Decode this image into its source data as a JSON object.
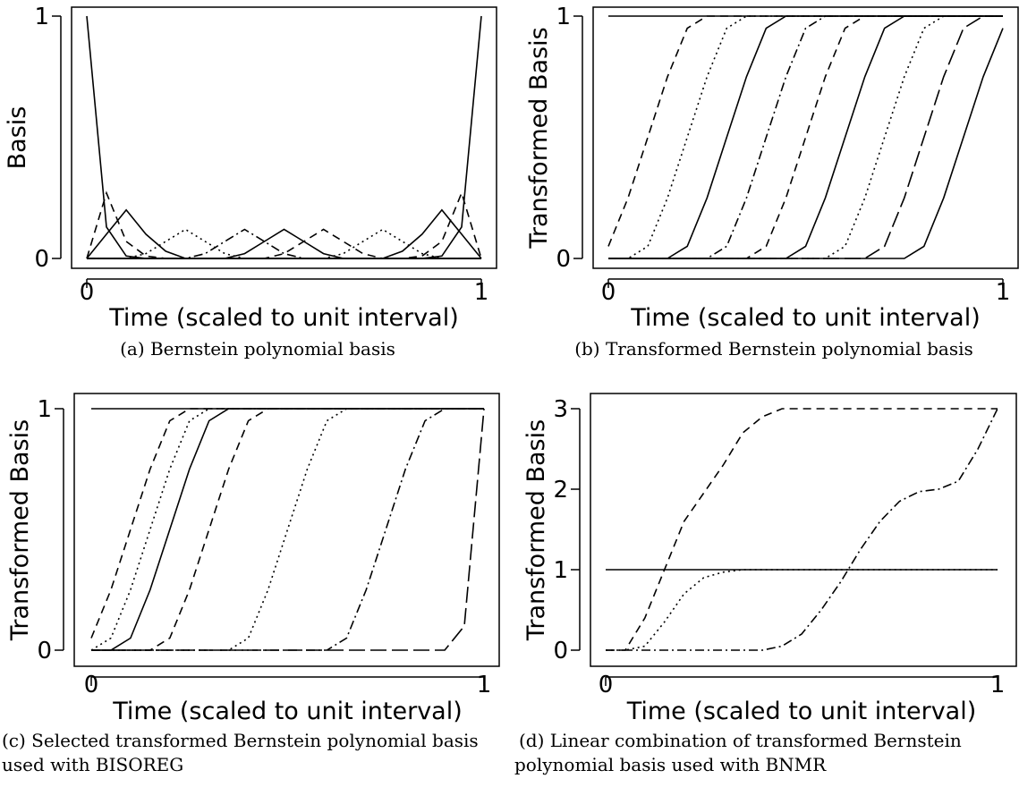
{
  "chart_data": [
    {
      "type": "line",
      "caption": [
        "(a) Bernstein polynomial basis"
      ],
      "xlabel": "Time (scaled to unit interval)",
      "ylabel": "Basis",
      "xlim": [
        0,
        1
      ],
      "ylim": [
        0,
        1
      ],
      "xticks": [
        0,
        1
      ],
      "yticks": [
        0,
        1
      ],
      "color": "#000000",
      "x": [
        0,
        0.05,
        0.1,
        0.15,
        0.2,
        0.25,
        0.3,
        0.35,
        0.4,
        0.45,
        0.5,
        0.55,
        0.6,
        0.65,
        0.7,
        0.75,
        0.8,
        0.85,
        0.9,
        0.95,
        1
      ],
      "series": [
        {
          "linestyle": "solid",
          "values": [
            1,
            0.13,
            0.01,
            0,
            0,
            0,
            0,
            0,
            0,
            0,
            0,
            0,
            0,
            0,
            0,
            0,
            0,
            0,
            0,
            0,
            0
          ]
        },
        {
          "linestyle": "solid",
          "values": [
            0,
            0,
            0,
            0,
            0,
            0,
            0,
            0,
            0,
            0,
            0,
            0,
            0,
            0,
            0,
            0,
            0,
            0,
            0.01,
            0.13,
            1
          ]
        },
        {
          "linestyle": "dashed",
          "values": [
            0,
            0.27,
            0.07,
            0.01,
            0,
            0,
            0,
            0,
            0,
            0,
            0,
            0,
            0,
            0,
            0,
            0,
            0,
            0,
            0,
            0,
            0
          ]
        },
        {
          "linestyle": "dashed",
          "values": [
            0,
            0,
            0,
            0,
            0,
            0,
            0,
            0,
            0,
            0,
            0,
            0,
            0,
            0,
            0,
            0,
            0,
            0.01,
            0.07,
            0.27,
            0
          ]
        },
        {
          "linestyle": "solid",
          "values": [
            0,
            0.1,
            0.2,
            0.1,
            0.03,
            0,
            0,
            0,
            0,
            0,
            0,
            0,
            0,
            0,
            0,
            0,
            0,
            0,
            0,
            0,
            0
          ]
        },
        {
          "linestyle": "solid",
          "values": [
            0,
            0,
            0,
            0,
            0,
            0,
            0,
            0,
            0,
            0,
            0,
            0,
            0,
            0,
            0,
            0,
            0.03,
            0.1,
            0.2,
            0.1,
            0
          ]
        },
        {
          "linestyle": "dotted",
          "values": [
            0,
            0,
            0,
            0.02,
            0.07,
            0.12,
            0.07,
            0.02,
            0,
            0,
            0,
            0,
            0,
            0,
            0,
            0,
            0,
            0,
            0,
            0,
            0
          ]
        },
        {
          "linestyle": "dashdot",
          "values": [
            0,
            0,
            0,
            0,
            0,
            0,
            0.02,
            0.07,
            0.12,
            0.07,
            0.02,
            0,
            0,
            0,
            0,
            0,
            0,
            0,
            0,
            0,
            0
          ]
        },
        {
          "linestyle": "solid",
          "values": [
            0,
            0,
            0,
            0,
            0,
            0,
            0,
            0,
            0.02,
            0.07,
            0.12,
            0.07,
            0.02,
            0,
            0,
            0,
            0,
            0,
            0,
            0,
            0
          ]
        },
        {
          "linestyle": "dashed",
          "values": [
            0,
            0,
            0,
            0,
            0,
            0,
            0,
            0,
            0,
            0,
            0.02,
            0.07,
            0.12,
            0.07,
            0.02,
            0,
            0,
            0,
            0,
            0,
            0
          ]
        },
        {
          "linestyle": "dotted",
          "values": [
            0,
            0,
            0,
            0,
            0,
            0,
            0,
            0,
            0,
            0,
            0,
            0,
            0,
            0.02,
            0.07,
            0.12,
            0.07,
            0.02,
            0,
            0,
            0
          ]
        }
      ]
    },
    {
      "type": "line",
      "caption": [
        "(b) Transformed Bernstein polynomial basis"
      ],
      "xlabel": "Time (scaled to unit interval)",
      "ylabel": "Transformed Basis",
      "xlim": [
        0,
        1
      ],
      "ylim": [
        0,
        1
      ],
      "xticks": [
        0,
        1
      ],
      "yticks": [
        0,
        1
      ],
      "color": "#000000",
      "x": [
        0,
        0.05,
        0.1,
        0.15,
        0.2,
        0.25,
        0.3,
        0.35,
        0.4,
        0.45,
        0.5,
        0.55,
        0.6,
        0.65,
        0.7,
        0.75,
        0.8,
        0.85,
        0.9,
        0.95,
        1
      ],
      "series": [
        {
          "linestyle": "solid",
          "values": [
            1,
            1,
            1,
            1,
            1,
            1,
            1,
            1,
            1,
            1,
            1,
            1,
            1,
            1,
            1,
            1,
            1,
            1,
            1,
            1,
            1
          ]
        },
        {
          "linestyle": "dashed",
          "values": [
            0.05,
            0.25,
            0.5,
            0.75,
            0.95,
            1,
            1,
            1,
            1,
            1,
            1,
            1,
            1,
            1,
            1,
            1,
            1,
            1,
            1,
            1,
            1
          ]
        },
        {
          "linestyle": "dotted",
          "values": [
            0,
            0,
            0.05,
            0.25,
            0.5,
            0.75,
            0.95,
            1,
            1,
            1,
            1,
            1,
            1,
            1,
            1,
            1,
            1,
            1,
            1,
            1,
            1
          ]
        },
        {
          "linestyle": "solid",
          "values": [
            0,
            0,
            0,
            0,
            0.05,
            0.25,
            0.5,
            0.75,
            0.95,
            1,
            1,
            1,
            1,
            1,
            1,
            1,
            1,
            1,
            1,
            1,
            1
          ]
        },
        {
          "linestyle": "dashdot",
          "values": [
            0,
            0,
            0,
            0,
            0,
            0,
            0.05,
            0.25,
            0.5,
            0.75,
            0.95,
            1,
            1,
            1,
            1,
            1,
            1,
            1,
            1,
            1,
            1
          ]
        },
        {
          "linestyle": "dashed",
          "values": [
            0,
            0,
            0,
            0,
            0,
            0,
            0,
            0,
            0.05,
            0.25,
            0.5,
            0.75,
            0.95,
            1,
            1,
            1,
            1,
            1,
            1,
            1,
            1
          ]
        },
        {
          "linestyle": "solid",
          "values": [
            0,
            0,
            0,
            0,
            0,
            0,
            0,
            0,
            0,
            0,
            0.05,
            0.25,
            0.5,
            0.75,
            0.95,
            1,
            1,
            1,
            1,
            1,
            1
          ]
        },
        {
          "linestyle": "dotted",
          "values": [
            0,
            0,
            0,
            0,
            0,
            0,
            0,
            0,
            0,
            0,
            0,
            0,
            0.05,
            0.25,
            0.5,
            0.75,
            0.95,
            1,
            1,
            1,
            1
          ]
        },
        {
          "linestyle": "longdash",
          "values": [
            0,
            0,
            0,
            0,
            0,
            0,
            0,
            0,
            0,
            0,
            0,
            0,
            0,
            0,
            0.05,
            0.25,
            0.5,
            0.75,
            0.95,
            1,
            1
          ]
        },
        {
          "linestyle": "solid",
          "values": [
            0,
            0,
            0,
            0,
            0,
            0,
            0,
            0,
            0,
            0,
            0,
            0,
            0,
            0,
            0,
            0,
            0.05,
            0.25,
            0.5,
            0.75,
            0.95
          ]
        }
      ]
    },
    {
      "type": "line",
      "caption": [
        "(c) Selected transformed Bernstein polynomial basis",
        "used with BISOREG"
      ],
      "xlabel": "Time (scaled to unit interval)",
      "ylabel": "Transformed Basis",
      "xlim": [
        0,
        1
      ],
      "ylim": [
        0,
        1
      ],
      "xticks": [
        0,
        1
      ],
      "yticks": [
        0,
        1
      ],
      "color": "#000000",
      "x": [
        0,
        0.05,
        0.1,
        0.15,
        0.2,
        0.25,
        0.3,
        0.35,
        0.4,
        0.45,
        0.5,
        0.55,
        0.6,
        0.65,
        0.7,
        0.75,
        0.8,
        0.85,
        0.9,
        0.95,
        1
      ],
      "series": [
        {
          "linestyle": "solid",
          "values": [
            1,
            1,
            1,
            1,
            1,
            1,
            1,
            1,
            1,
            1,
            1,
            1,
            1,
            1,
            1,
            1,
            1,
            1,
            1,
            1,
            1
          ]
        },
        {
          "linestyle": "dashed",
          "values": [
            0.05,
            0.25,
            0.5,
            0.75,
            0.95,
            1,
            1,
            1,
            1,
            1,
            1,
            1,
            1,
            1,
            1,
            1,
            1,
            1,
            1,
            1,
            1
          ]
        },
        {
          "linestyle": "dotted",
          "values": [
            0,
            0.05,
            0.25,
            0.5,
            0.75,
            0.95,
            1,
            1,
            1,
            1,
            1,
            1,
            1,
            1,
            1,
            1,
            1,
            1,
            1,
            1,
            1
          ]
        },
        {
          "linestyle": "solid",
          "values": [
            0,
            0,
            0.05,
            0.25,
            0.5,
            0.75,
            0.95,
            1,
            1,
            1,
            1,
            1,
            1,
            1,
            1,
            1,
            1,
            1,
            1,
            1,
            1
          ]
        },
        {
          "linestyle": "dashed",
          "values": [
            0,
            0,
            0,
            0,
            0.05,
            0.25,
            0.5,
            0.75,
            0.95,
            1,
            1,
            1,
            1,
            1,
            1,
            1,
            1,
            1,
            1,
            1,
            1
          ]
        },
        {
          "linestyle": "dotted",
          "values": [
            0,
            0,
            0,
            0,
            0,
            0,
            0,
            0,
            0.05,
            0.25,
            0.5,
            0.75,
            0.95,
            1,
            1,
            1,
            1,
            1,
            1,
            1,
            1
          ]
        },
        {
          "linestyle": "dashdot",
          "values": [
            0,
            0,
            0,
            0,
            0,
            0,
            0,
            0,
            0,
            0,
            0,
            0,
            0,
            0.05,
            0.25,
            0.5,
            0.75,
            0.95,
            1,
            1,
            1
          ]
        },
        {
          "linestyle": "longdash",
          "values": [
            0,
            0,
            0,
            0,
            0,
            0,
            0,
            0,
            0,
            0,
            0,
            0,
            0,
            0,
            0,
            0,
            0,
            0,
            0,
            0.1,
            1
          ]
        }
      ]
    },
    {
      "type": "line",
      "caption": [
        "(d)  Linear  combination  of  transformed  Bernstein",
        "polynomial basis used with BNMR"
      ],
      "xlabel": "Time (scaled to unit interval)",
      "ylabel": "Transformed Basis",
      "xlim": [
        0,
        1
      ],
      "ylim": [
        0,
        3
      ],
      "xticks": [
        0,
        1
      ],
      "yticks": [
        0,
        1,
        2,
        3
      ],
      "color": "#000000",
      "x": [
        0,
        0.05,
        0.1,
        0.15,
        0.2,
        0.25,
        0.3,
        0.35,
        0.4,
        0.45,
        0.5,
        0.55,
        0.6,
        0.65,
        0.7,
        0.75,
        0.8,
        0.85,
        0.9,
        0.95,
        1
      ],
      "series": [
        {
          "linestyle": "solid",
          "values": [
            1,
            1,
            1,
            1,
            1,
            1,
            1,
            1,
            1,
            1,
            1,
            1,
            1,
            1,
            1,
            1,
            1,
            1,
            1,
            1,
            1
          ]
        },
        {
          "linestyle": "dashed",
          "values": [
            0,
            0,
            0.4,
            1,
            1.6,
            1.95,
            2.3,
            2.7,
            2.9,
            3,
            3,
            3,
            3,
            3,
            3,
            3,
            3,
            3,
            3,
            3,
            3
          ]
        },
        {
          "linestyle": "dotted",
          "values": [
            0,
            0,
            0.05,
            0.35,
            0.7,
            0.9,
            0.97,
            1,
            1,
            1,
            1,
            1,
            1,
            1,
            1,
            1,
            1,
            1,
            1,
            1,
            1
          ]
        },
        {
          "linestyle": "dashdot",
          "values": [
            0,
            0,
            0,
            0,
            0,
            0,
            0,
            0,
            0,
            0.05,
            0.2,
            0.5,
            0.85,
            1.25,
            1.6,
            1.85,
            1.97,
            2,
            2.1,
            2.5,
            3
          ]
        }
      ]
    }
  ]
}
